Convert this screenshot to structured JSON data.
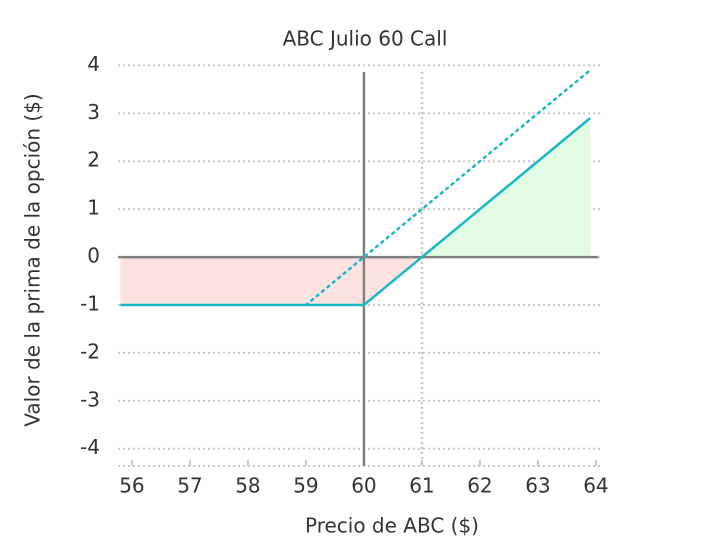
{
  "chart_data": {
    "type": "line",
    "title": "ABC Julio 60 Call",
    "xlabel": "Precio de ABC ($)",
    "ylabel": "Valor de la prima de la opción ($)",
    "xlim": [
      55.76,
      64.07
    ],
    "ylim": [
      -4.36,
      4.05
    ],
    "xticks": [
      56,
      57,
      58,
      59,
      60,
      61,
      62,
      63,
      64
    ],
    "yticks": [
      4,
      3,
      2,
      1,
      0,
      -1,
      -2,
      -3,
      -4
    ],
    "grid": true,
    "series": [
      {
        "color": "#1ab8c4",
        "style": "solid",
        "x": [
          55.8,
          60,
          61,
          63.9
        ],
        "values": [
          -1,
          -1,
          0,
          2.9
        ]
      },
      {
        "color": "#1ab8c4",
        "style": "dotted",
        "x": [
          59,
          63.9
        ],
        "values": [
          -1,
          3.9
        ]
      }
    ],
    "loss_fill": "#fde2e2",
    "gain_fill": "#e2fbe2",
    "reference_lines": [
      {
        "x": 60,
        "style": "solid"
      },
      {
        "x": 61,
        "style": "dotted"
      },
      {
        "y": 0,
        "style": "solid"
      }
    ]
  }
}
